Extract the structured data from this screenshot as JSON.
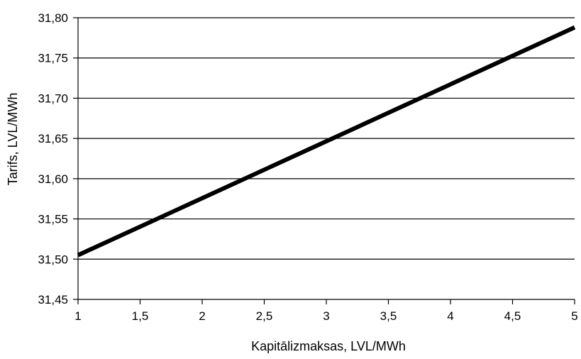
{
  "chart_data": {
    "type": "line",
    "title": "",
    "xlabel": "Kapitālizmaksas, LVL/MWh",
    "ylabel": "Tarifs, LVL/MWh",
    "xlim": [
      1,
      5
    ],
    "ylim": [
      31.45,
      31.8
    ],
    "x_ticks": [
      "1",
      "1,5",
      "2",
      "2,5",
      "3",
      "3,5",
      "4",
      "4,5",
      "5"
    ],
    "x_tick_values": [
      1,
      1.5,
      2,
      2.5,
      3,
      3.5,
      4,
      4.5,
      5
    ],
    "y_ticks": [
      "31,80",
      "31,75",
      "31,70",
      "31,65",
      "31,60",
      "31,55",
      "31,50",
      "31,45"
    ],
    "y_tick_values": [
      31.8,
      31.75,
      31.7,
      31.65,
      31.6,
      31.55,
      31.5,
      31.45
    ],
    "grid": "horizontal",
    "legend": "none",
    "series": [
      {
        "x": [
          1,
          5
        ],
        "y": [
          31.505,
          31.788
        ],
        "color": "#000000"
      }
    ]
  }
}
